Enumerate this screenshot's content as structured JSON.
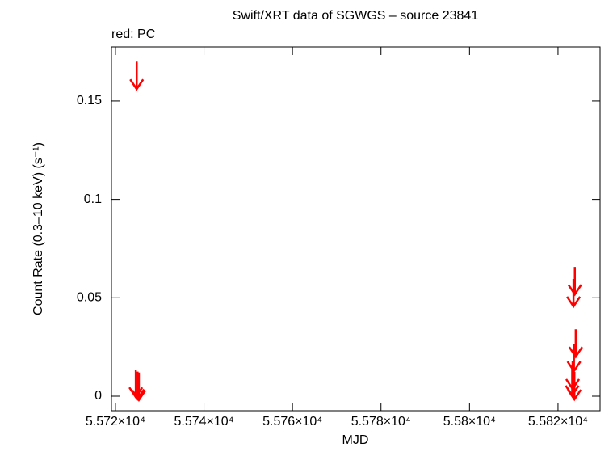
{
  "chart_data": {
    "type": "scatter",
    "title": "Swift/XRT data of SGWGS – source 23841",
    "subtitle": "red: PC",
    "x_label": "MJD",
    "y_label": "Count Rate (0.3–10 keV) (s⁻¹)",
    "upper_limits": true,
    "series": [
      {
        "color": "#ff0000",
        "x": [
          55724.8,
          55724.6,
          55725.0,
          55725.3,
          55823.8,
          55823.5,
          55824.0,
          55823.6,
          55823.3,
          55823.2,
          55823.7
        ],
        "values": [
          0.17,
          0.0135,
          0.0125,
          0.012,
          0.0657,
          0.0596,
          0.034,
          0.0267,
          0.0177,
          0.0144,
          0.0123
        ]
      }
    ],
    "xlim": [
      55719.1,
      55829.5
    ],
    "xticks": [
      {
        "value": 55720,
        "label": "5.572×10⁴"
      },
      {
        "value": 55740,
        "label": "5.574×10⁴"
      },
      {
        "value": 55760,
        "label": "5.576×10⁴"
      },
      {
        "value": 55780,
        "label": "5.578×10⁴"
      },
      {
        "value": 55800,
        "label": "5.58×10⁴"
      },
      {
        "value": 55820,
        "label": "5.582×10⁴"
      }
    ],
    "ylim": [
      -0.0074,
      0.1775
    ],
    "yticks": [
      0,
      0.05,
      0.1,
      0.15
    ]
  }
}
